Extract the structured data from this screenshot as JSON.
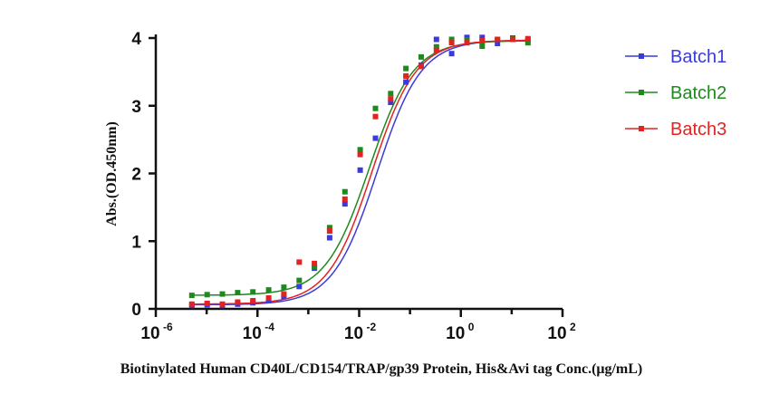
{
  "chart_data": {
    "type": "scatter",
    "x_scale": "log10",
    "xlabel": "Biotinylated Human CD40L/CD154/TRAP/gp39 Protein, His&Avi tag Conc.(μg/mL)",
    "ylabel": "Abs.(OD.450nm)",
    "xlim_log10": [
      -6,
      2
    ],
    "ylim": [
      0,
      4
    ],
    "x_ticks": [
      {
        "base": "10",
        "exp": "-6",
        "log10": -6
      },
      {
        "base": "10",
        "exp": "-4",
        "log10": -4
      },
      {
        "base": "10",
        "exp": "-2",
        "log10": -2
      },
      {
        "base": "10",
        "exp": "0",
        "log10": 0
      },
      {
        "base": "10",
        "exp": "2",
        "log10": 2
      }
    ],
    "y_ticks": [
      "0",
      "1",
      "2",
      "3",
      "4"
    ],
    "x_log10": [
      -5.29,
      -4.99,
      -4.69,
      -4.39,
      -4.09,
      -3.78,
      -3.48,
      -3.18,
      -2.88,
      -2.58,
      -2.28,
      -1.98,
      -1.68,
      -1.38,
      -1.08,
      -0.78,
      -0.48,
      -0.18,
      0.12,
      0.42,
      0.72,
      1.02,
      1.32
    ],
    "series": [
      {
        "name": "Batch1",
        "color": "#3b3bd9",
        "curve": {
          "bottom": 0.06,
          "top": 3.97,
          "log_ec50": -1.65,
          "hill": 1.0
        },
        "values": [
          0.05,
          0.06,
          0.05,
          0.07,
          0.09,
          0.12,
          0.18,
          0.33,
          0.6,
          1.05,
          1.55,
          2.05,
          2.52,
          3.05,
          3.35,
          3.6,
          3.98,
          3.77,
          4.01,
          4.01,
          3.92,
          4.0,
          3.97
        ]
      },
      {
        "name": "Batch2",
        "color": "#1e8a1e",
        "curve": {
          "bottom": 0.2,
          "top": 3.96,
          "log_ec50": -1.8,
          "hill": 1.0
        },
        "values": [
          0.2,
          0.21,
          0.22,
          0.24,
          0.25,
          0.28,
          0.32,
          0.42,
          0.62,
          1.2,
          1.73,
          2.35,
          2.96,
          3.18,
          3.55,
          3.72,
          3.87,
          3.98,
          3.97,
          3.88,
          3.98,
          3.99,
          3.93
        ]
      },
      {
        "name": "Batch3",
        "color": "#e32222",
        "curve": {
          "bottom": 0.07,
          "top": 3.97,
          "log_ec50": -1.75,
          "hill": 1.0
        },
        "values": [
          0.07,
          0.08,
          0.07,
          0.1,
          0.12,
          0.16,
          0.22,
          0.69,
          0.67,
          1.15,
          1.62,
          2.28,
          2.84,
          3.1,
          3.44,
          3.58,
          3.82,
          3.93,
          3.93,
          3.96,
          3.98,
          3.98,
          3.99
        ]
      }
    ]
  }
}
